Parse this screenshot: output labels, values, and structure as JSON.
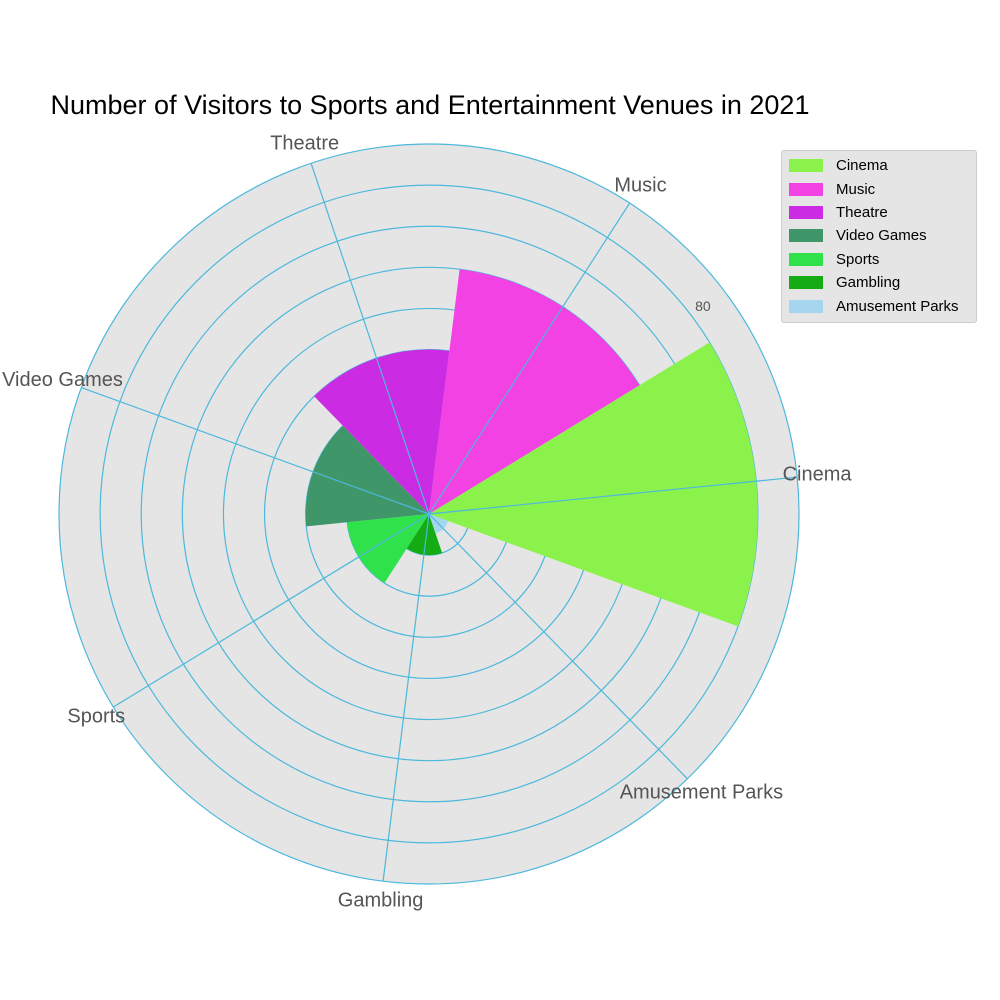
{
  "chart_data": {
    "type": "polar-bar",
    "title": "Number of Visitors to Sports and Entertainment Venues in 2021",
    "categories": [
      "Cinema",
      "Music",
      "Theatre",
      "Video Games",
      "Sports",
      "Gambling",
      "Amusement Parks"
    ],
    "values": [
      80,
      60,
      40,
      30,
      20,
      10,
      5
    ],
    "colors": [
      "#8af24b",
      "#f342e3",
      "#cb2ce3",
      "#3f9669",
      "#2fe24c",
      "#14ab14",
      "#a6d6ef"
    ],
    "radial_max": 90,
    "radial_gridlines": [
      10,
      20,
      30,
      40,
      50,
      60,
      70,
      80,
      90
    ],
    "visible_tick_labels": [
      "80"
    ],
    "legend_position": "upper-right",
    "grid": true,
    "background_color": "#e5e5e5",
    "grid_color": "#4cb8dc",
    "label_color": "#555555"
  }
}
